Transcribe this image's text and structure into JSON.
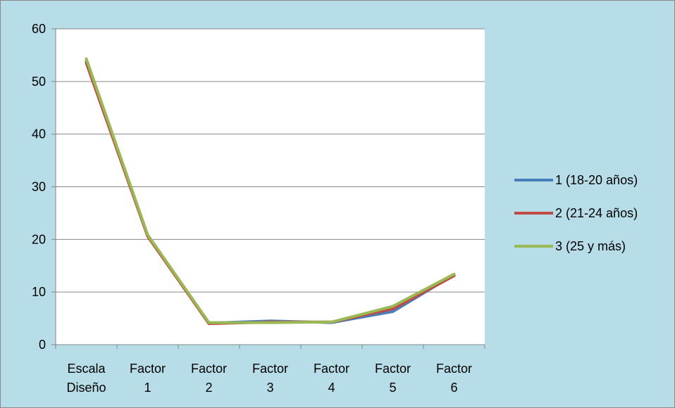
{
  "chart_data": {
    "type": "line",
    "categories": [
      [
        "Escala",
        "Diseño"
      ],
      [
        "Factor",
        "1"
      ],
      [
        "Factor",
        "2"
      ],
      [
        "Factor",
        "3"
      ],
      [
        "Factor",
        "4"
      ],
      [
        "Factor",
        "5"
      ],
      [
        "Factor",
        "6"
      ]
    ],
    "series": [
      {
        "name": "1 (18-20 años)",
        "color": "#4a7ebb",
        "values": [
          53.8,
          20.7,
          4.1,
          4.5,
          4.2,
          6.3,
          13.3
        ]
      },
      {
        "name": "2 (21-24 años)",
        "color": "#be4b48",
        "values": [
          53.5,
          20.6,
          4.0,
          4.3,
          4.3,
          6.8,
          13.1
        ]
      },
      {
        "name": "3 (25 y más)",
        "color": "#98b954",
        "values": [
          54.3,
          20.9,
          4.2,
          4.2,
          4.3,
          7.3,
          13.4
        ]
      }
    ],
    "ylim": [
      0,
      60
    ],
    "yticks": [
      0,
      10,
      20,
      30,
      40,
      50,
      60
    ],
    "grid": true,
    "legend": "right",
    "title": "",
    "xlabel": "",
    "ylabel": ""
  }
}
